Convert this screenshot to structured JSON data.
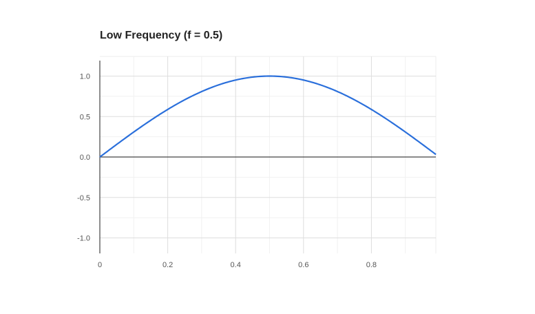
{
  "chart_data": {
    "type": "line",
    "title": "Low Frequency (f = 0.5)",
    "xlabel": "",
    "ylabel": "",
    "xlim": [
      0,
      0.99
    ],
    "ylim": [
      -1.2,
      1.2
    ],
    "x_ticks": [
      0,
      0.2,
      0.4,
      0.6,
      0.8
    ],
    "x_tick_labels": [
      "0",
      "0.2",
      "0.4",
      "0.6",
      "0.8"
    ],
    "y_ticks": [
      1.0,
      0.5,
      0.0,
      -0.5,
      -1.0
    ],
    "y_tick_labels": [
      "1.0",
      "0.5",
      "0.0",
      "-0.5",
      "-1.0"
    ],
    "grid": true,
    "series": [
      {
        "color": "#2a6fdb",
        "x": [
          0,
          0.05,
          0.1,
          0.15,
          0.2,
          0.25,
          0.3,
          0.35,
          0.4,
          0.45,
          0.5,
          0.55,
          0.6,
          0.65,
          0.7,
          0.75,
          0.8,
          0.85,
          0.9,
          0.95,
          0.99
        ],
        "y": [
          0,
          0.16,
          0.31,
          0.45,
          0.59,
          0.71,
          0.81,
          0.89,
          0.95,
          0.99,
          1.0,
          0.99,
          0.95,
          0.89,
          0.81,
          0.71,
          0.59,
          0.45,
          0.31,
          0.16,
          0.03
        ]
      }
    ]
  }
}
